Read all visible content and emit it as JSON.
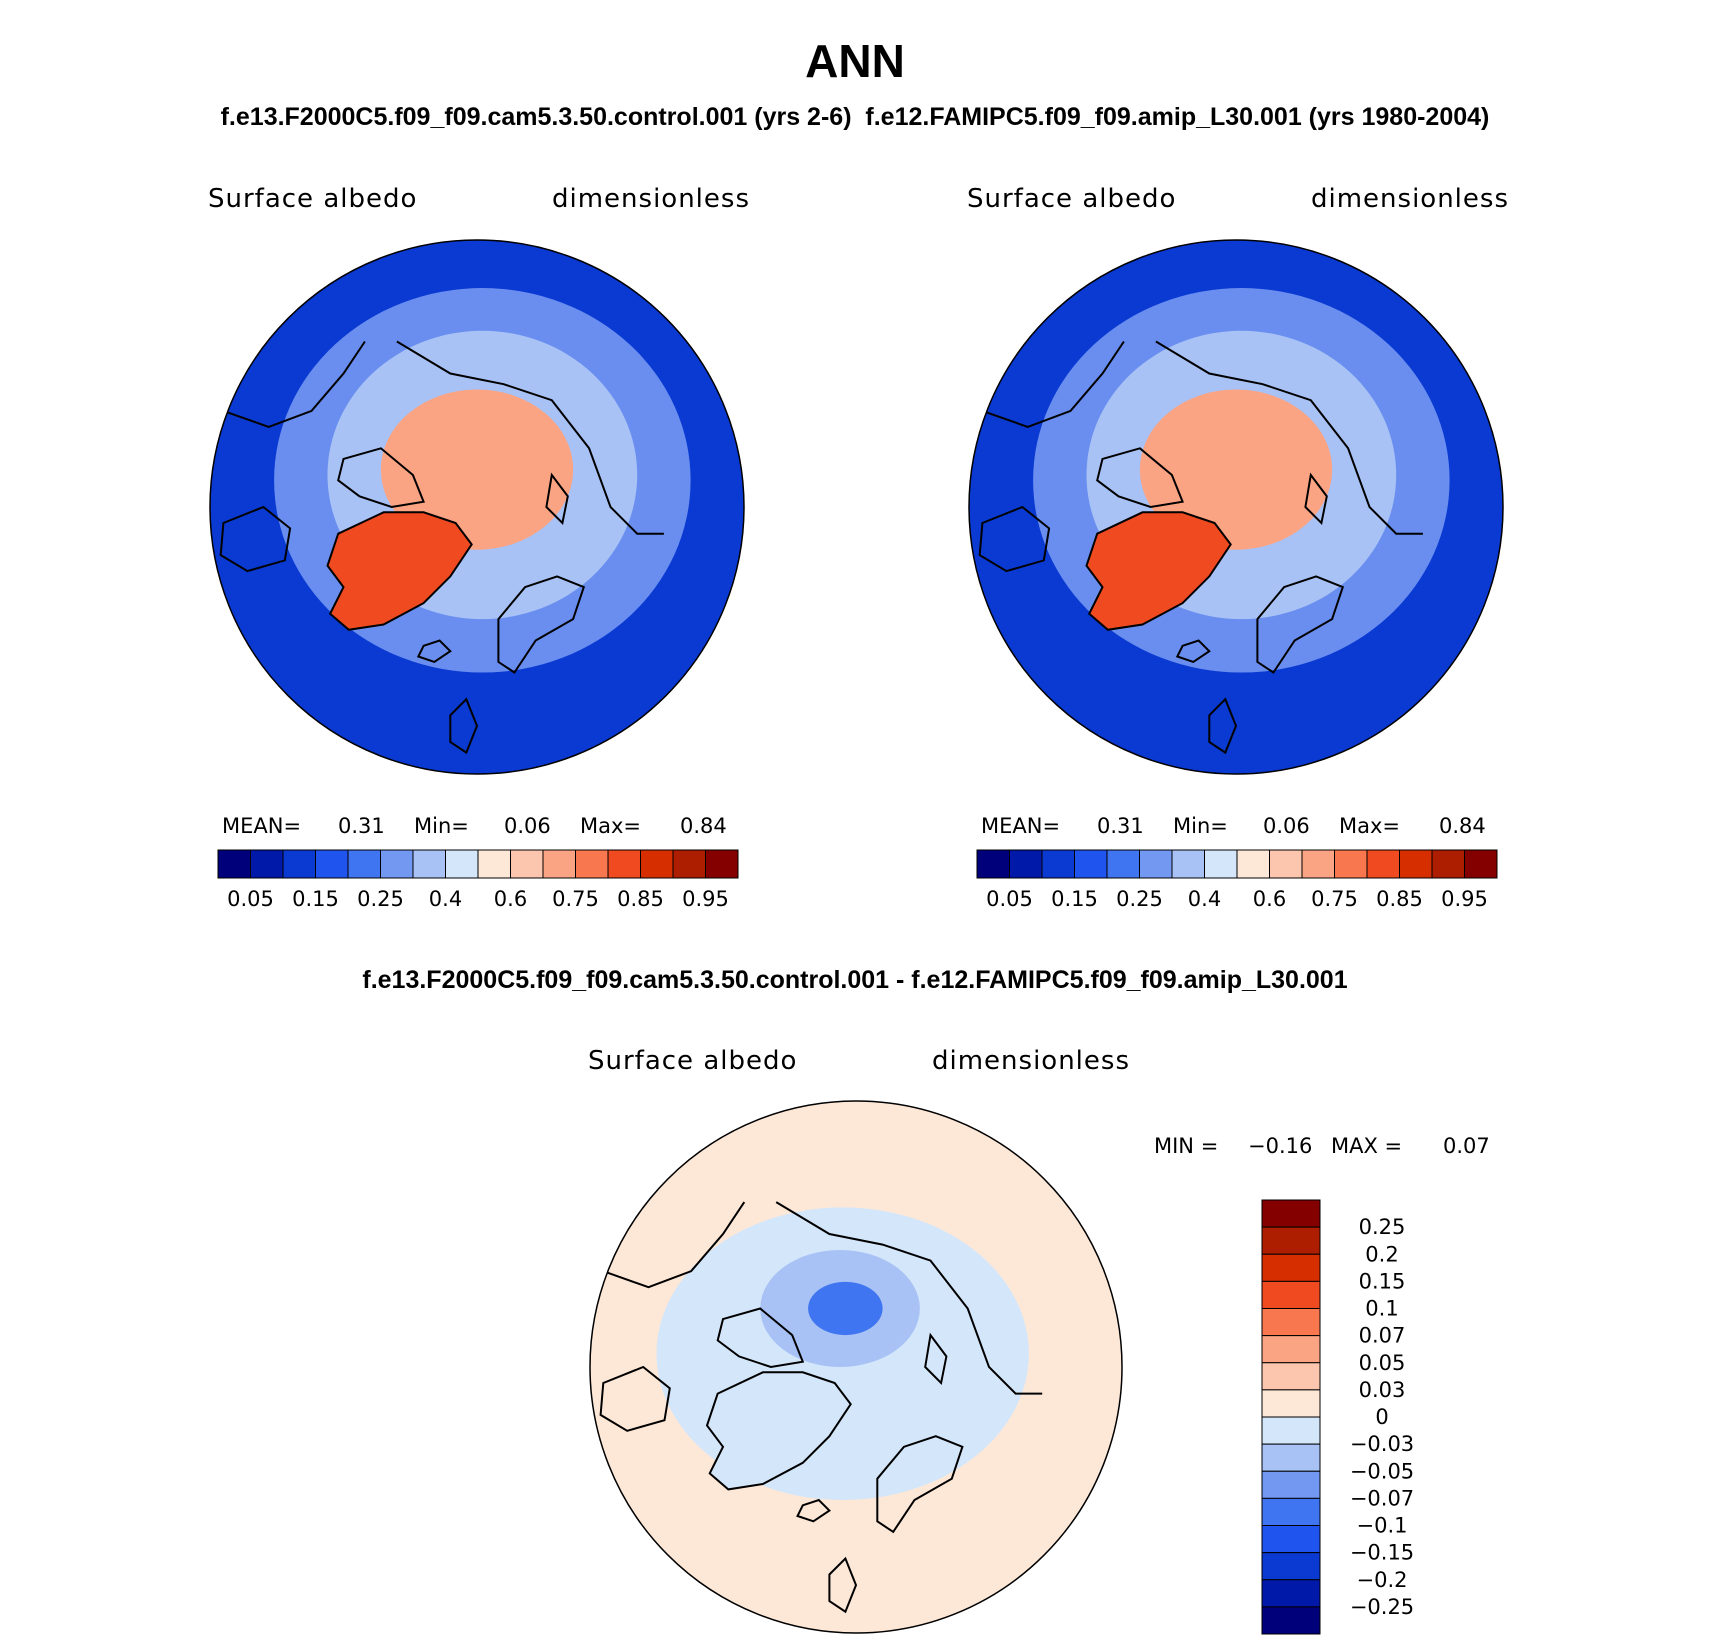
{
  "figure_title": "ANN",
  "cases_title": "f.e13.F2000C5.f09_f09.cam5.3.50.control.001 (yrs 2-6)  f.e12.FAMIPC5.f09_f09.amip_L30.001 (yrs 1980-2004)",
  "diff_title": "f.e13.F2000C5.f09_f09.cam5.3.50.control.001 - f.e12.FAMIPC5.f09_f09.amip_L30.001",
  "chart_data": [
    {
      "type": "heatmap",
      "projection": "north polar stereographic",
      "variable": "Surface albedo",
      "units": "dimensionless",
      "stats": {
        "mean_label": "MEAN=",
        "mean": "0.31",
        "min_label": "Min=",
        "min": "0.06",
        "max_label": "Max=",
        "max": "0.84"
      },
      "colorbar": {
        "orientation": "horizontal",
        "levels": [
          0.05,
          0.1,
          0.15,
          0.2,
          0.25,
          0.3,
          0.4,
          0.5,
          0.6,
          0.7,
          0.75,
          0.8,
          0.85,
          0.9,
          0.95
        ],
        "tick_labels": [
          "0.05",
          "0.15",
          "0.25",
          "0.4",
          "0.6",
          "0.75",
          "0.85",
          "0.95"
        ],
        "colors": [
          "#00007a",
          "#0019a8",
          "#0a3ad2",
          "#1f55ee",
          "#3f75f0",
          "#7398f2",
          "#a8c2f5",
          "#d4e6fa",
          "#fde8d8",
          "#fcc5ad",
          "#fba483",
          "#f8774f",
          "#f04a20",
          "#d72e00",
          "#ad1e00",
          "#840000"
        ]
      },
      "regions": [
        {
          "name": "arctic_ocean_ice",
          "value": 0.7
        },
        {
          "name": "greenland",
          "value": 0.8
        },
        {
          "name": "ocean_high_latitude",
          "value": 0.35
        },
        {
          "name": "ocean_low_latitude",
          "value": 0.1
        },
        {
          "name": "land_continents",
          "value": 0.25
        }
      ]
    },
    {
      "type": "heatmap",
      "projection": "north polar stereographic",
      "variable": "Surface albedo",
      "units": "dimensionless",
      "stats": {
        "mean_label": "MEAN=",
        "mean": "0.31",
        "min_label": "Min=",
        "min": "0.06",
        "max_label": "Max=",
        "max": "0.84"
      },
      "colorbar": {
        "orientation": "horizontal",
        "levels": [
          0.05,
          0.1,
          0.15,
          0.2,
          0.25,
          0.3,
          0.4,
          0.5,
          0.6,
          0.7,
          0.75,
          0.8,
          0.85,
          0.9,
          0.95
        ],
        "tick_labels": [
          "0.05",
          "0.15",
          "0.25",
          "0.4",
          "0.6",
          "0.75",
          "0.85",
          "0.95"
        ],
        "colors": [
          "#00007a",
          "#0019a8",
          "#0a3ad2",
          "#1f55ee",
          "#3f75f0",
          "#7398f2",
          "#a8c2f5",
          "#d4e6fa",
          "#fde8d8",
          "#fcc5ad",
          "#fba483",
          "#f8774f",
          "#f04a20",
          "#d72e00",
          "#ad1e00",
          "#840000"
        ]
      },
      "regions": [
        {
          "name": "arctic_ocean_ice",
          "value": 0.72
        },
        {
          "name": "greenland",
          "value": 0.82
        },
        {
          "name": "ocean_high_latitude",
          "value": 0.35
        },
        {
          "name": "ocean_low_latitude",
          "value": 0.1
        },
        {
          "name": "land_continents",
          "value": 0.25
        }
      ]
    },
    {
      "type": "heatmap",
      "projection": "north polar stereographic",
      "variable": "Surface albedo",
      "units": "dimensionless",
      "stats": {
        "min_label": "MIN =",
        "min": "−0.16",
        "max_label": "MAX =",
        "max": "0.07"
      },
      "colorbar": {
        "orientation": "vertical",
        "levels": [
          -0.25,
          -0.2,
          -0.15,
          -0.1,
          -0.07,
          -0.05,
          -0.03,
          0,
          0.03,
          0.05,
          0.07,
          0.1,
          0.15,
          0.2,
          0.25
        ],
        "tick_labels": [
          "0.25",
          "0.2",
          "0.15",
          "0.1",
          "0.07",
          "0.05",
          "0.03",
          "0",
          "−0.03",
          "−0.05",
          "−0.07",
          "−0.1",
          "−0.15",
          "−0.2",
          "−0.25"
        ],
        "colors": [
          "#00007a",
          "#0019a8",
          "#0a3ad2",
          "#1f55ee",
          "#3f75f0",
          "#7398f2",
          "#a8c2f5",
          "#d4e6fa",
          "#fde8d8",
          "#fcc5ad",
          "#fba483",
          "#f8774f",
          "#f04a20",
          "#d72e00",
          "#ad1e00",
          "#840000"
        ]
      },
      "regions": [
        {
          "name": "background",
          "value": 0.01
        },
        {
          "name": "arctic_ocean_ice",
          "value": -0.04
        },
        {
          "name": "arctic_center",
          "value": -0.08
        },
        {
          "name": "greenland",
          "value": -0.02
        },
        {
          "name": "land_continents",
          "value": -0.01
        }
      ]
    }
  ]
}
